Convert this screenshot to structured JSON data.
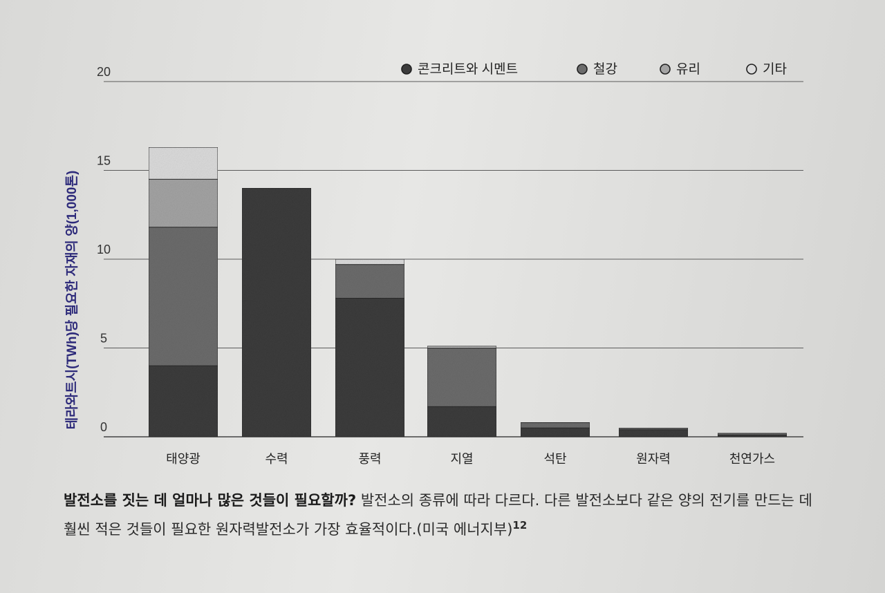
{
  "chart_data": {
    "type": "bar",
    "stacked": true,
    "ylabel": "테라와트시(TWh)당 필요한 자재의 양(1,000톤)",
    "ylim": [
      0,
      20
    ],
    "yticks": [
      0,
      5,
      10,
      15,
      20
    ],
    "grid": true,
    "legend_position": "top-right",
    "categories": [
      "태양광",
      "수력",
      "풍력",
      "지열",
      "석탄",
      "원자력",
      "천연가스"
    ],
    "series": [
      {
        "name": "콘크리트와 시멘트",
        "color": "#3c3c3c",
        "values": [
          4.0,
          14.0,
          7.8,
          1.7,
          0.5,
          0.4,
          0.1
        ]
      },
      {
        "name": "철강",
        "color": "#6c6c6c",
        "values": [
          7.8,
          0.0,
          1.9,
          3.3,
          0.3,
          0.1,
          0.1
        ]
      },
      {
        "name": "유리",
        "color": "#a4a4a4",
        "values": [
          2.7,
          0.0,
          0.0,
          0.0,
          0.0,
          0.0,
          0.0
        ]
      },
      {
        "name": "기타",
        "color": "#dcdcdc",
        "values": [
          1.8,
          0.0,
          0.3,
          0.1,
          0.0,
          0.0,
          0.0
        ]
      }
    ]
  },
  "caption": {
    "lead": "발전소를 짓는 데 얼마나 많은 것들이 필요할까?",
    "body": " 발전소의 종류에 따라 다르다. 다른 발전소보다 같은 양의 전기를 만드는 데 훨씬 적은 것들이 필요한 원자력발전소가 가장 효율적이다.(미국 에너지부)",
    "ref": "12"
  }
}
